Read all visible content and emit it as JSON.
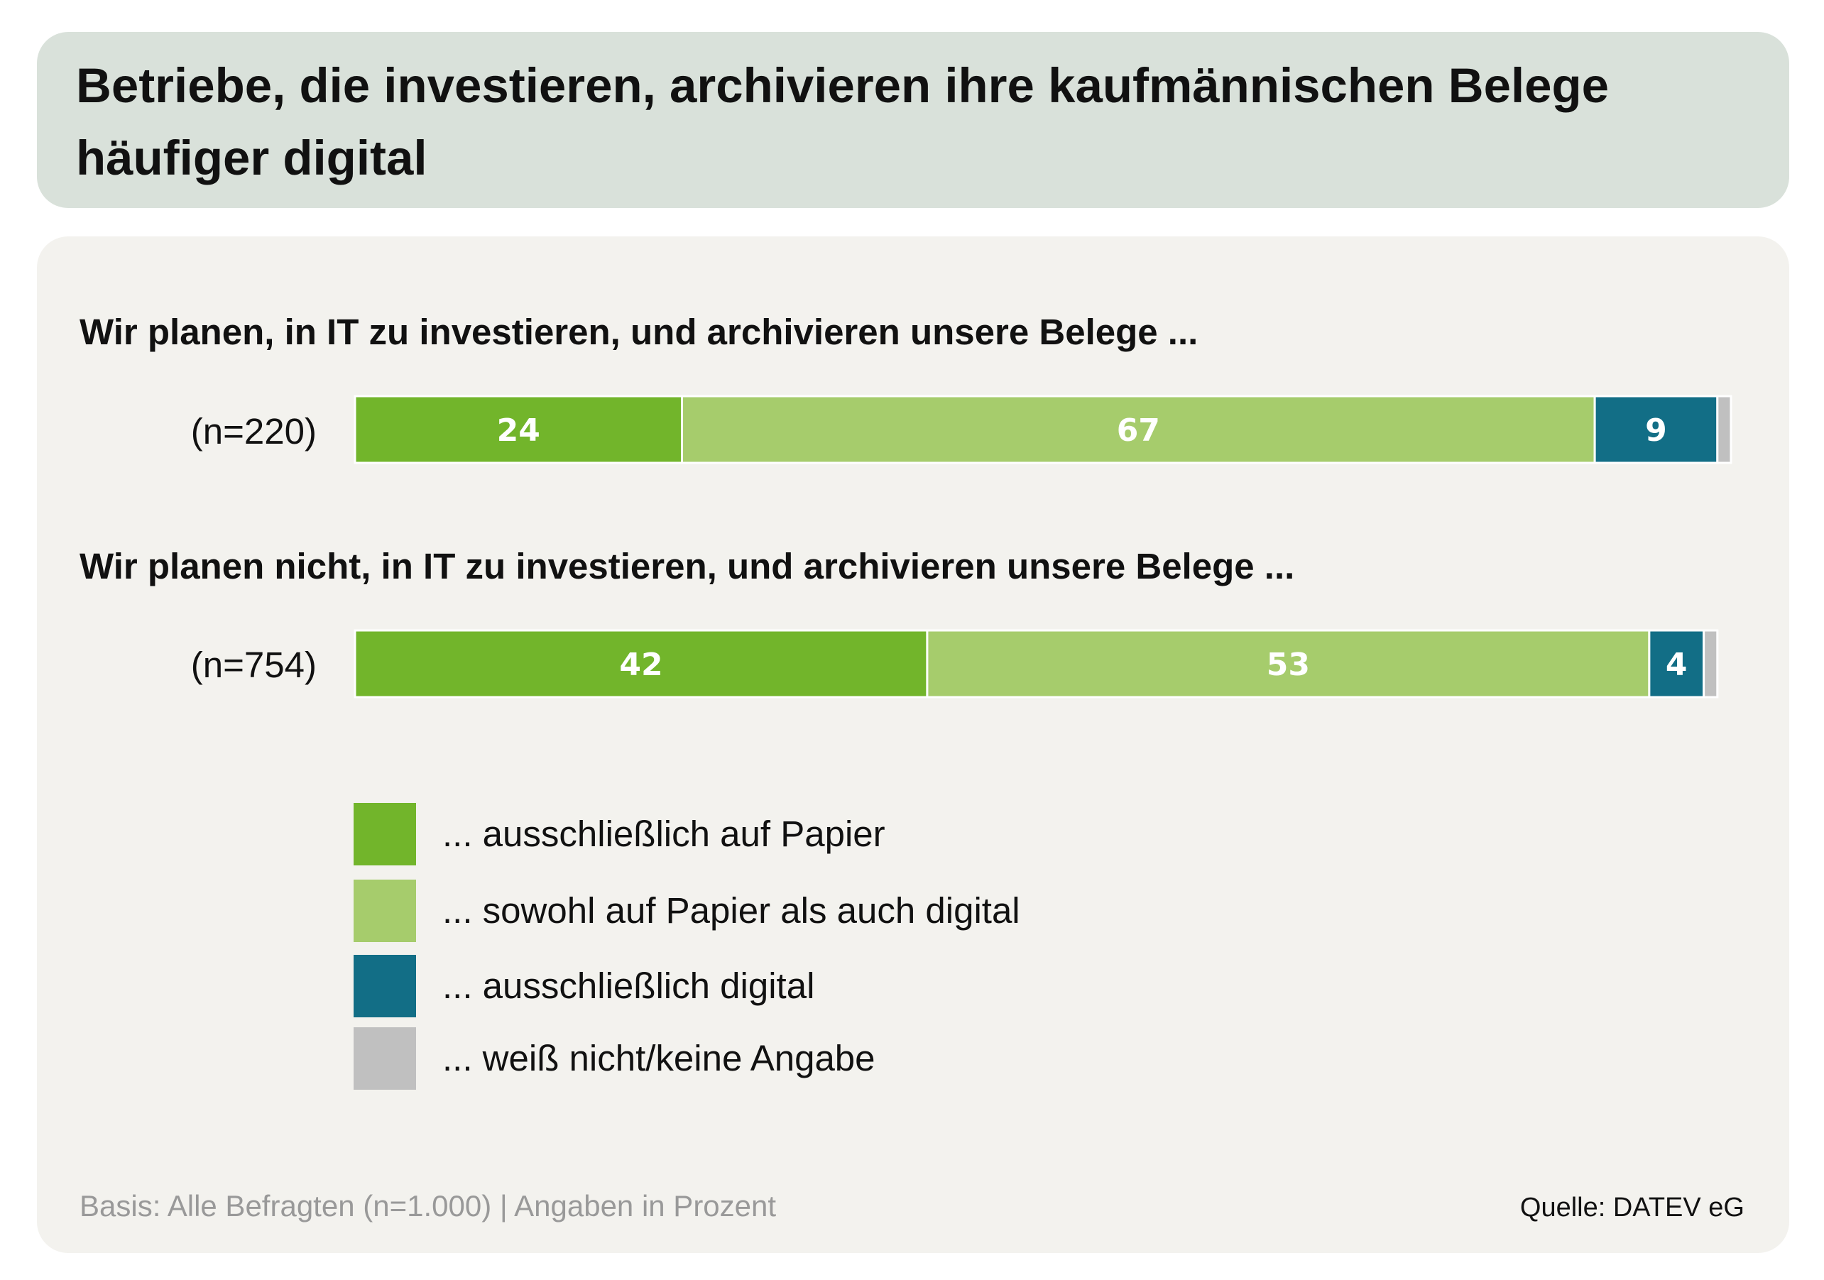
{
  "title": "Betriebe, die investieren, archivieren ihre kaufmännischen Belege häufiger digital",
  "footer": {
    "basis": "Basis: Alle Befragten (n=1.000) | Angaben in Prozent",
    "source": "Quelle: DATEV eG"
  },
  "chart_data": {
    "type": "bar",
    "orientation": "horizontal-stacked-100",
    "unit": "Prozent",
    "groups": [
      {
        "heading": "Wir planen, in IT zu investieren, und archivieren unsere Belege ...",
        "n_label": "(n=220)"
      },
      {
        "heading": "Wir planen nicht, in IT zu investieren, und archivieren unsere Belege ...",
        "n_label": "(n=754)"
      }
    ],
    "series": [
      {
        "name": "... ausschließlich auf Papier",
        "color": "#72b52b",
        "values": [
          24,
          42
        ],
        "labels": [
          "24",
          "42"
        ]
      },
      {
        "name": "... sowohl auf Papier als auch digital",
        "color": "#a6cc6c",
        "values": [
          67,
          53
        ],
        "labels": [
          "67",
          "53"
        ]
      },
      {
        "name": "... ausschließlich digital",
        "color": "#126e86",
        "values": [
          9,
          4
        ],
        "labels": [
          "9",
          "4"
        ]
      },
      {
        "name": "... weiß nicht/keine Angabe",
        "color": "#c0c0c0",
        "values": [
          1,
          1
        ],
        "labels": [
          "",
          ""
        ]
      }
    ],
    "xlim": [
      0,
      101
    ]
  }
}
